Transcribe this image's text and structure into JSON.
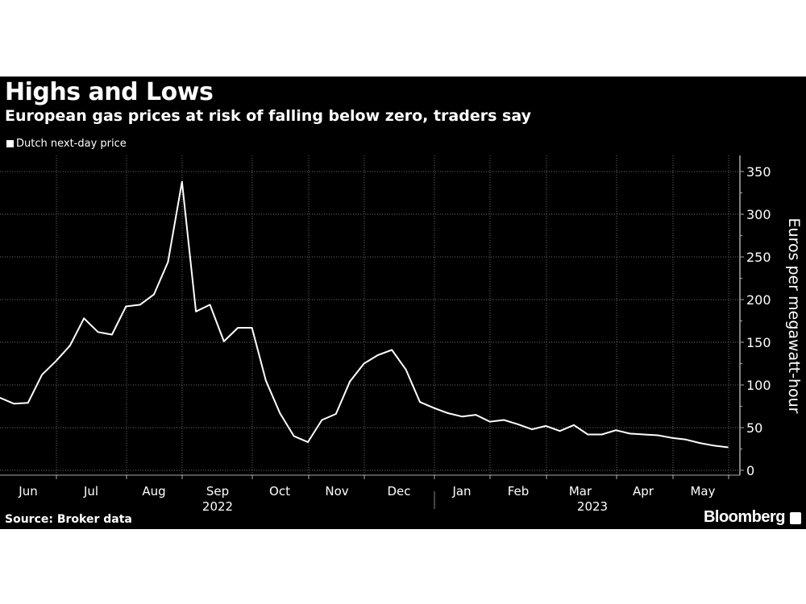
{
  "header": {
    "title": "Highs and Lows",
    "subtitle": "European gas prices at risk of falling below zero, traders say"
  },
  "footer": {
    "source": "Source: Broker data",
    "brand": "Bloomberg"
  },
  "chart_data": {
    "type": "line",
    "title": "Highs and Lows",
    "subtitle": "European gas prices at risk of falling below zero, traders say",
    "ylabel": "Euros per megawatt-hour",
    "ylim": [
      0,
      360
    ],
    "yticks": [
      0,
      50,
      100,
      150,
      200,
      250,
      300,
      350
    ],
    "y_axis_side": "right",
    "grid": true,
    "legend_position": "top-left",
    "x_month_labels": [
      "Jun",
      "Jul",
      "Aug",
      "Sep",
      "Oct",
      "Nov",
      "Dec",
      "Jan",
      "Feb",
      "Mar",
      "Apr",
      "May"
    ],
    "x_year_labels": [
      "2022",
      "2023"
    ],
    "x_range": [
      "2022-06",
      "2023-05"
    ],
    "frequency": "weekly",
    "line_color": "#ffffff",
    "background": "#000000",
    "series": [
      {
        "name": "Dutch next-day price",
        "values": [
          85,
          78,
          79,
          112,
          128,
          146,
          178,
          162,
          159,
          192,
          194,
          206,
          244,
          338,
          186,
          194,
          151,
          167,
          167,
          105,
          67,
          40,
          33,
          59,
          66,
          104,
          125,
          135,
          141,
          118,
          80,
          73,
          67,
          63,
          65,
          57,
          59,
          54,
          48,
          52,
          46,
          53,
          42,
          42,
          47,
          43,
          42,
          41,
          38,
          36,
          32,
          29,
          27
        ]
      }
    ]
  }
}
